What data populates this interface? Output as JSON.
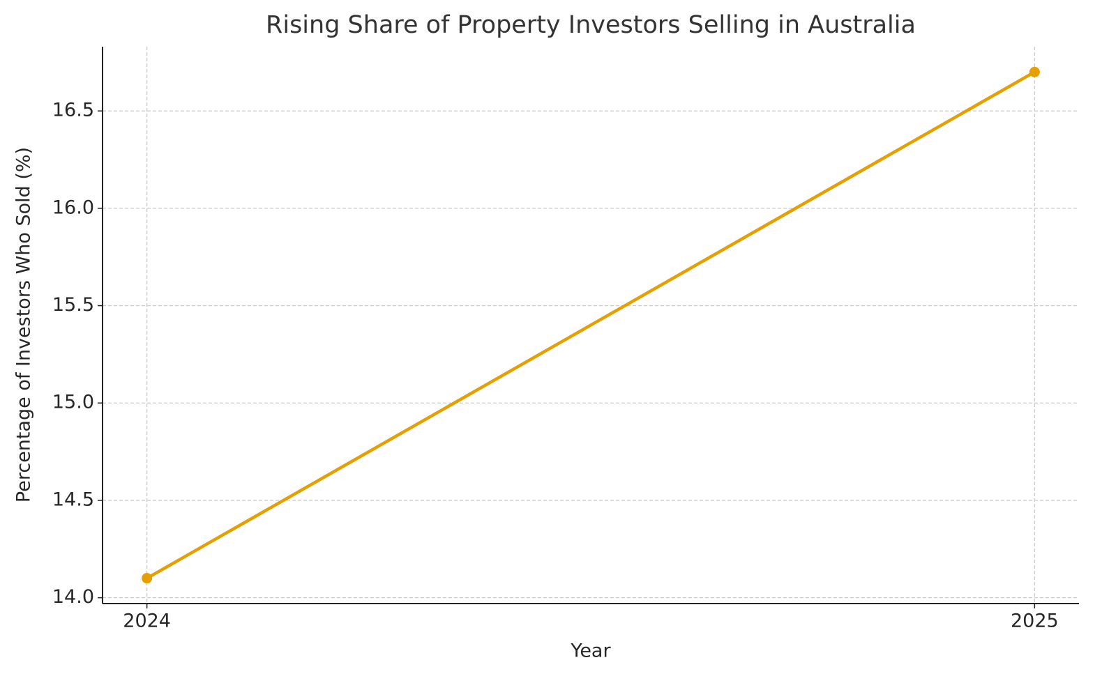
{
  "chart_data": {
    "type": "line",
    "title": "Rising Share of Property Investors Selling in Australia",
    "x_label": "Year",
    "y_label": "Percentage of Investors Who Sold (%)",
    "x": [
      2024,
      2025
    ],
    "series": [
      {
        "name": "Share selling",
        "color": "#e69f00",
        "values": [
          14.1,
          16.7
        ]
      }
    ],
    "xlim": [
      2023.95,
      2025.05
    ],
    "xticks": [
      2024,
      2025
    ],
    "ylim": [
      13.97,
      16.83
    ],
    "yticks": [
      {
        "value": 14.0,
        "label": "14.0"
      },
      {
        "value": 14.5,
        "label": "14.5"
      },
      {
        "value": 15.0,
        "label": "15.0"
      },
      {
        "value": 15.5,
        "label": "15.5"
      },
      {
        "value": 16.0,
        "label": "16.0"
      },
      {
        "value": 16.5,
        "label": "16.5"
      }
    ],
    "grid": true,
    "legend": false
  }
}
